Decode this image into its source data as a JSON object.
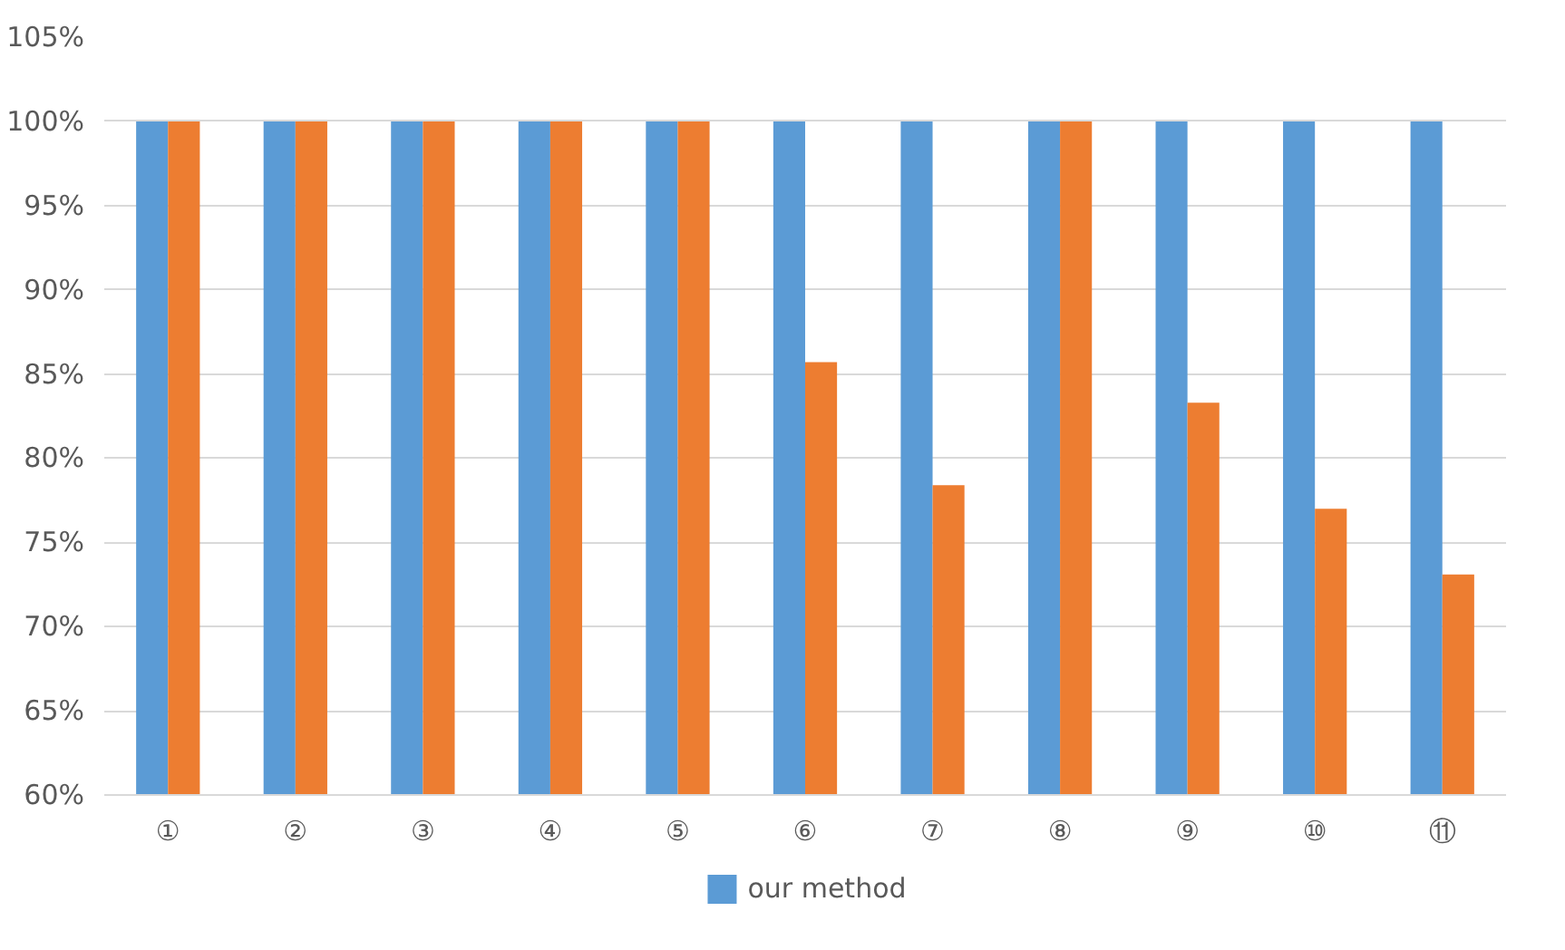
{
  "chart_data": {
    "type": "bar",
    "categories": [
      "①",
      "②",
      "③",
      "④",
      "⑤",
      "⑥",
      "⑦",
      "⑧",
      "⑨",
      "⑩",
      "⑪"
    ],
    "series": [
      {
        "name": "our method",
        "color": "#5b9bd5",
        "values": [
          100,
          100,
          100,
          100,
          100,
          100,
          100,
          100,
          100,
          100,
          100
        ]
      },
      {
        "color": "#ed7d31",
        "values": [
          100,
          100,
          100,
          100,
          100,
          85.7,
          78.4,
          100,
          83.3,
          77.0,
          73.1
        ]
      }
    ],
    "ylim": [
      60,
      105
    ],
    "yticks": [
      {
        "value": 60,
        "label": "60%"
      },
      {
        "value": 65,
        "label": "65%"
      },
      {
        "value": 70,
        "label": "70%"
      },
      {
        "value": 75,
        "label": "75%"
      },
      {
        "value": 80,
        "label": "80%"
      },
      {
        "value": 85,
        "label": "85%"
      },
      {
        "value": 90,
        "label": "90%"
      },
      {
        "value": 95,
        "label": "95%"
      },
      {
        "value": 100,
        "label": "100%"
      },
      {
        "value": 105,
        "label": "105%"
      }
    ],
    "grid": "y",
    "legend": "bottom"
  }
}
